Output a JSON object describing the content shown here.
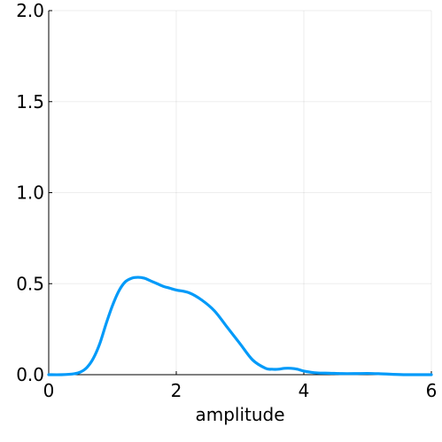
{
  "chart_data": {
    "type": "line",
    "title": "",
    "xlabel": "amplitude",
    "ylabel": "",
    "xlim": [
      0,
      6
    ],
    "ylim": [
      0,
      2
    ],
    "grid": true,
    "legend": "none",
    "x_ticks": [
      0,
      2,
      4,
      6
    ],
    "x_tick_labels": [
      "0",
      "2",
      "4",
      "6"
    ],
    "y_ticks": [
      0.0,
      0.5,
      1.0,
      1.5,
      2.0
    ],
    "y_tick_labels": [
      "0.0",
      "0.5",
      "1.0",
      "1.5",
      "2.0"
    ],
    "series": [
      {
        "color": "#009af9",
        "x": [
          0.0,
          0.2,
          0.4,
          0.5,
          0.6,
          0.7,
          0.8,
          0.9,
          1.0,
          1.1,
          1.2,
          1.3,
          1.4,
          1.5,
          1.6,
          1.7,
          1.8,
          1.9,
          2.0,
          2.2,
          2.4,
          2.6,
          2.8,
          3.0,
          3.2,
          3.4,
          3.5,
          3.6,
          3.7,
          3.8,
          3.9,
          4.0,
          4.2,
          4.4,
          4.6,
          4.8,
          5.0,
          5.2,
          5.4,
          5.6,
          5.8,
          6.0
        ],
        "y": [
          0.0,
          0.0,
          0.005,
          0.015,
          0.04,
          0.09,
          0.17,
          0.28,
          0.38,
          0.46,
          0.51,
          0.53,
          0.535,
          0.53,
          0.515,
          0.5,
          0.485,
          0.475,
          0.465,
          0.45,
          0.41,
          0.35,
          0.26,
          0.17,
          0.08,
          0.035,
          0.03,
          0.03,
          0.035,
          0.035,
          0.03,
          0.02,
          0.01,
          0.008,
          0.006,
          0.006,
          0.007,
          0.005,
          0.002,
          0.0,
          0.0,
          0.0
        ]
      }
    ]
  }
}
